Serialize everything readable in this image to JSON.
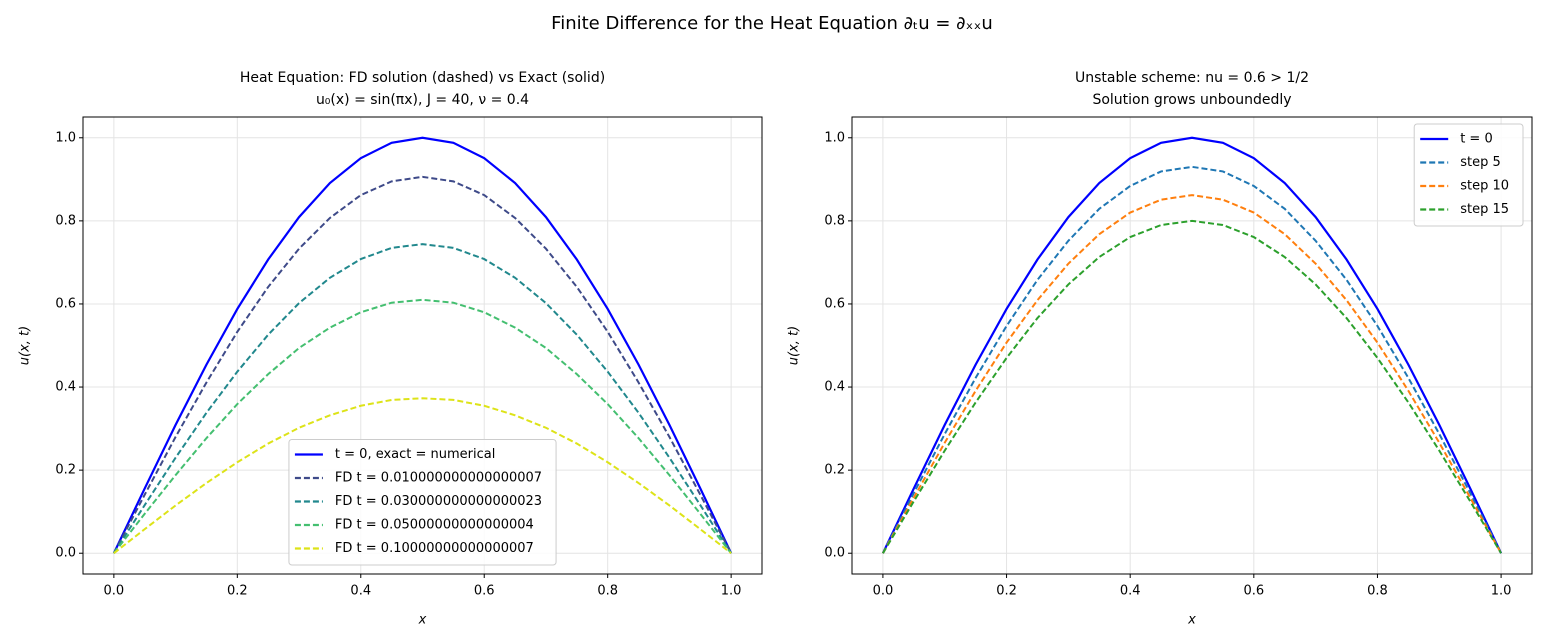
{
  "title": "Finite Difference for the Heat Equation ∂ₜu = ∂ₓₓu",
  "chart_data": [
    {
      "type": "line",
      "title": "Heat Equation: FD solution (dashed) vs Exact (solid)",
      "subtitle": "u₀(x) = sin(πx), J = 40, ν = 0.4",
      "xlabel": "x",
      "ylabel": "u(x, t)",
      "grid": true,
      "legend": "lower center",
      "xlim": [
        -0.05,
        1.05
      ],
      "ylim": [
        -0.05,
        1.05
      ],
      "xticks": [
        {
          "value": 0,
          "label": "0.0"
        },
        {
          "value": 0.2,
          "label": "0.2"
        },
        {
          "value": 0.4,
          "label": "0.4"
        },
        {
          "value": 0.6,
          "label": "0.6"
        },
        {
          "value": 0.8,
          "label": "0.8"
        },
        {
          "value": 1,
          "label": "1.0"
        }
      ],
      "yticks": [
        {
          "value": 0,
          "label": "0.0"
        },
        {
          "value": 0.2,
          "label": "0.2"
        },
        {
          "value": 0.4,
          "label": "0.4"
        },
        {
          "value": 0.6,
          "label": "0.6"
        },
        {
          "value": 0.8,
          "label": "0.8"
        },
        {
          "value": 1,
          "label": "1.0"
        }
      ],
      "x": [
        0,
        0.05,
        0.1,
        0.15,
        0.2,
        0.25,
        0.3,
        0.35,
        0.4,
        0.45,
        0.5,
        0.55,
        0.6,
        0.65,
        0.7,
        0.75,
        0.8,
        0.85,
        0.9,
        0.95,
        1
      ],
      "series": [
        {
          "name": "t = 0, exact = numerical",
          "color": "#0000ff",
          "linestyle": "solid",
          "values": [
            0,
            0.156,
            0.309,
            0.454,
            0.588,
            0.707,
            0.809,
            0.891,
            0.951,
            0.988,
            1.0,
            0.988,
            0.951,
            0.891,
            0.809,
            0.707,
            0.588,
            0.454,
            0.309,
            0.156,
            0
          ]
        },
        {
          "name": "FD t = 0.010000000000000007",
          "color": "#3e4a89",
          "linestyle": "dashed",
          "values": [
            0,
            0.141,
            0.28,
            0.411,
            0.533,
            0.641,
            0.733,
            0.807,
            0.862,
            0.895,
            0.906,
            0.895,
            0.862,
            0.807,
            0.733,
            0.641,
            0.533,
            0.411,
            0.28,
            0.141,
            0
          ]
        },
        {
          "name": "FD t = 0.030000000000000023",
          "color": "#21888d",
          "linestyle": "dashed",
          "values": [
            0,
            0.116,
            0.23,
            0.338,
            0.437,
            0.526,
            0.602,
            0.663,
            0.708,
            0.735,
            0.744,
            0.735,
            0.708,
            0.663,
            0.602,
            0.526,
            0.437,
            0.338,
            0.23,
            0.116,
            0
          ]
        },
        {
          "name": "FD t = 0.05000000000000004",
          "color": "#44bf70",
          "linestyle": "dashed",
          "values": [
            0,
            0.095,
            0.188,
            0.277,
            0.359,
            0.431,
            0.494,
            0.543,
            0.58,
            0.603,
            0.61,
            0.603,
            0.58,
            0.543,
            0.494,
            0.431,
            0.359,
            0.277,
            0.188,
            0.095,
            0
          ]
        },
        {
          "name": "FD t = 0.10000000000000007",
          "color": "#dde318",
          "linestyle": "dashed",
          "values": [
            0,
            0.058,
            0.115,
            0.169,
            0.219,
            0.264,
            0.302,
            0.332,
            0.355,
            0.369,
            0.373,
            0.369,
            0.355,
            0.332,
            0.302,
            0.264,
            0.219,
            0.169,
            0.115,
            0.058,
            0
          ]
        }
      ]
    },
    {
      "type": "line",
      "title": "Unstable scheme: nu = 0.6 > 1/2",
      "subtitle": "Solution grows unboundedly",
      "xlabel": "x",
      "ylabel": "u(x, t)",
      "grid": true,
      "legend": "upper right",
      "xlim": [
        -0.05,
        1.05
      ],
      "ylim": [
        -0.05,
        1.05
      ],
      "xticks": [
        {
          "value": 0,
          "label": "0.0"
        },
        {
          "value": 0.2,
          "label": "0.2"
        },
        {
          "value": 0.4,
          "label": "0.4"
        },
        {
          "value": 0.6,
          "label": "0.6"
        },
        {
          "value": 0.8,
          "label": "0.8"
        },
        {
          "value": 1,
          "label": "1.0"
        }
      ],
      "yticks": [
        {
          "value": 0,
          "label": "0.0"
        },
        {
          "value": 0.2,
          "label": "0.2"
        },
        {
          "value": 0.4,
          "label": "0.4"
        },
        {
          "value": 0.6,
          "label": "0.6"
        },
        {
          "value": 0.8,
          "label": "0.8"
        },
        {
          "value": 1,
          "label": "1.0"
        }
      ],
      "x": [
        0,
        0.05,
        0.1,
        0.15,
        0.2,
        0.25,
        0.3,
        0.35,
        0.4,
        0.45,
        0.5,
        0.55,
        0.6,
        0.65,
        0.7,
        0.75,
        0.8,
        0.85,
        0.9,
        0.95,
        1
      ],
      "series": [
        {
          "name": "t = 0",
          "color": "#0000ff",
          "linestyle": "solid",
          "values": [
            0,
            0.156,
            0.309,
            0.454,
            0.588,
            0.707,
            0.809,
            0.891,
            0.951,
            0.988,
            1.0,
            0.988,
            0.951,
            0.891,
            0.809,
            0.707,
            0.588,
            0.454,
            0.309,
            0.156,
            0
          ]
        },
        {
          "name": "step 5",
          "color": "#1f77b4",
          "linestyle": "dashed",
          "values": [
            0,
            0.145,
            0.287,
            0.422,
            0.547,
            0.658,
            0.752,
            0.829,
            0.884,
            0.919,
            0.93,
            0.919,
            0.884,
            0.829,
            0.752,
            0.658,
            0.547,
            0.422,
            0.287,
            0.145,
            0
          ]
        },
        {
          "name": "step 10",
          "color": "#ff7f0e",
          "linestyle": "dashed",
          "values": [
            0,
            0.134,
            0.266,
            0.391,
            0.507,
            0.609,
            0.697,
            0.768,
            0.82,
            0.851,
            0.862,
            0.851,
            0.82,
            0.768,
            0.697,
            0.609,
            0.507,
            0.391,
            0.266,
            0.134,
            0
          ]
        },
        {
          "name": "step 15",
          "color": "#2ca02c",
          "linestyle": "dashed",
          "values": [
            0,
            0.125,
            0.247,
            0.363,
            0.47,
            0.566,
            0.647,
            0.713,
            0.761,
            0.79,
            0.8,
            0.79,
            0.761,
            0.713,
            0.647,
            0.566,
            0.47,
            0.363,
            0.247,
            0.125,
            0
          ]
        }
      ]
    }
  ]
}
